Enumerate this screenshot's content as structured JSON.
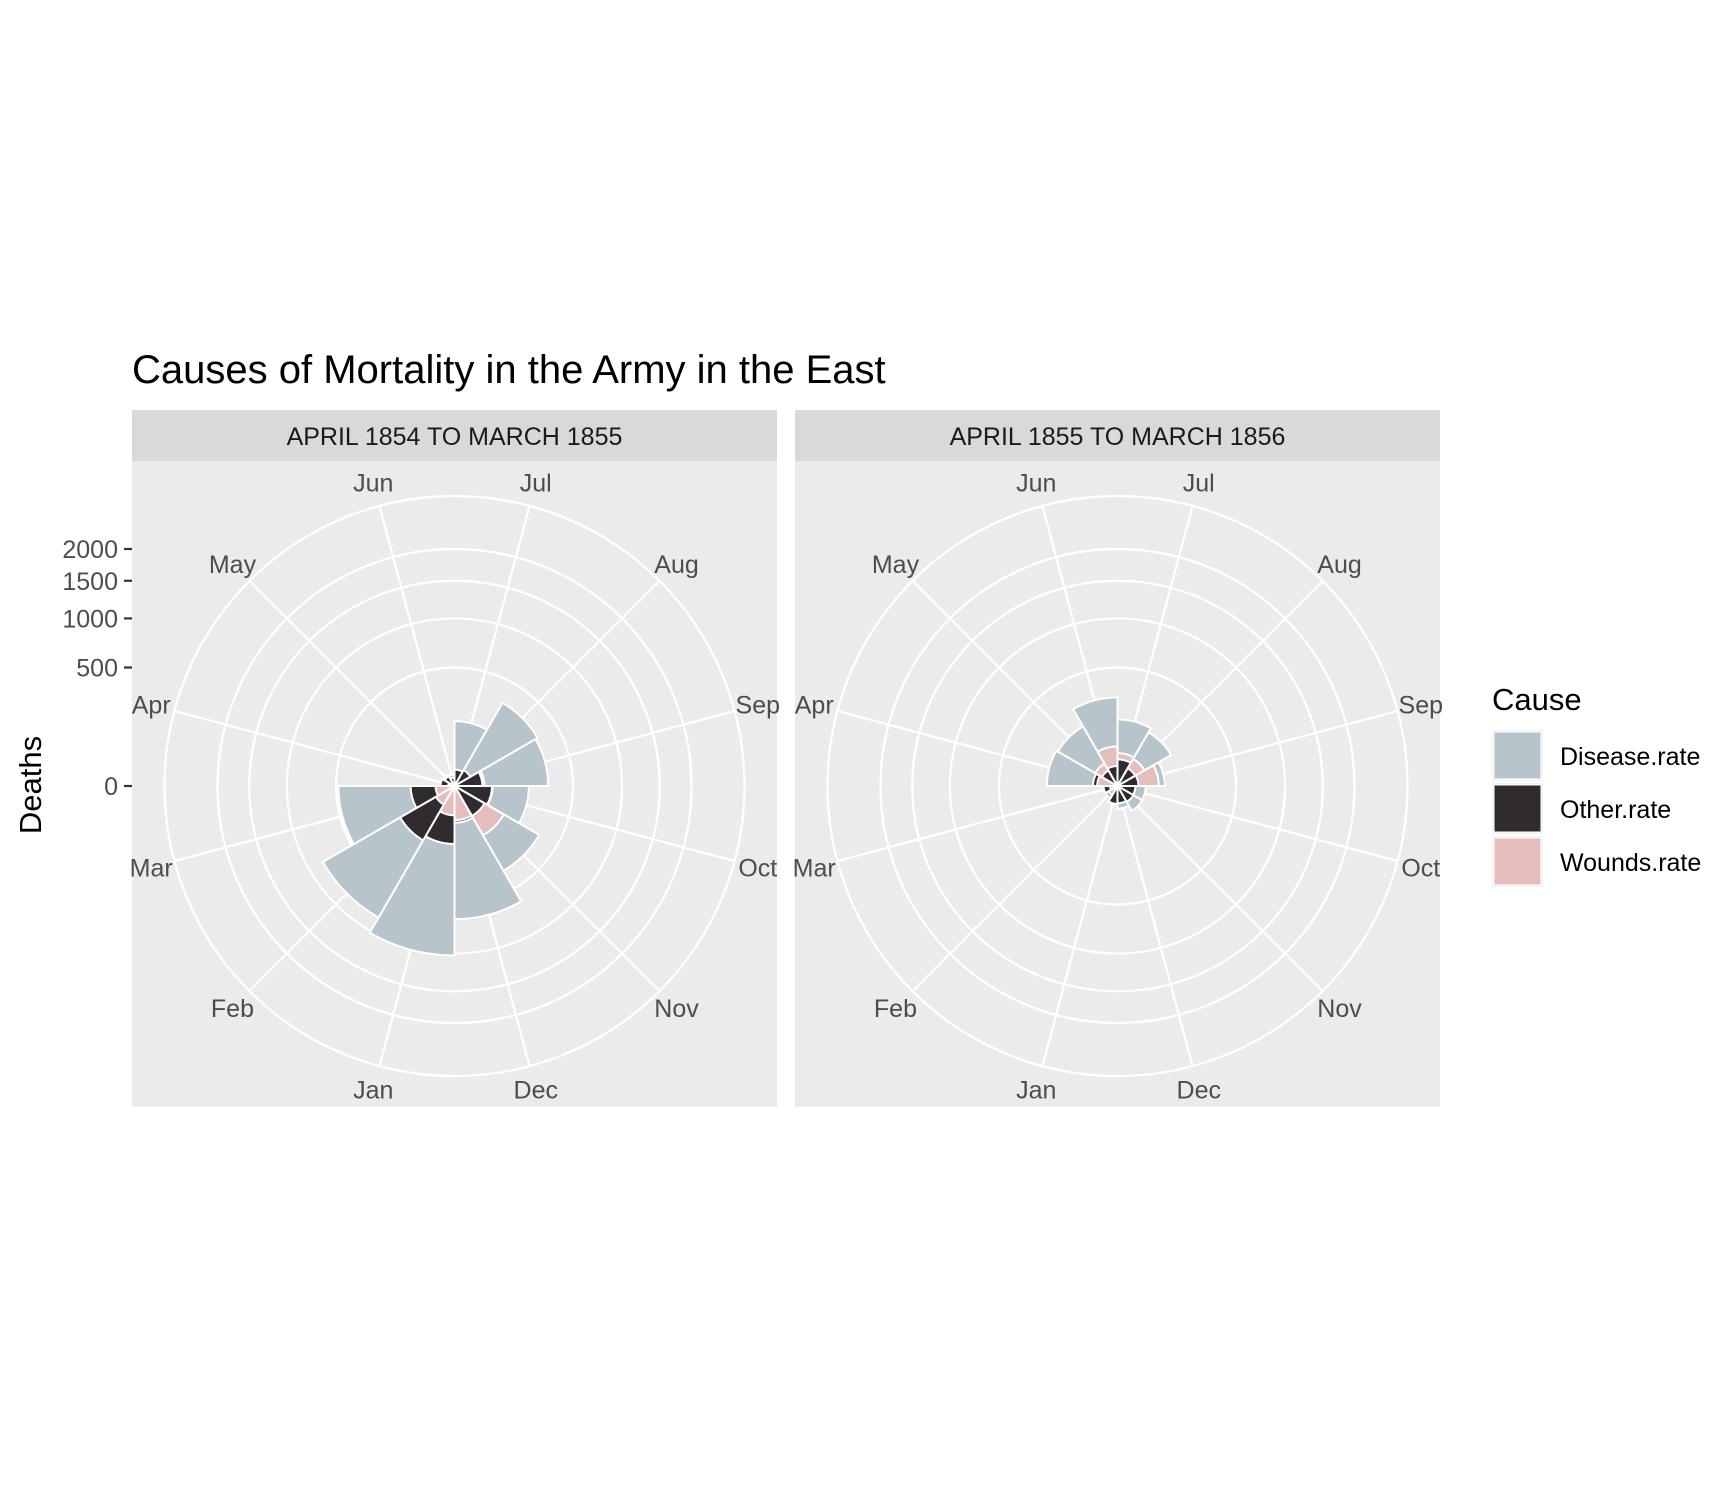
{
  "chart_data": {
    "type": "polar-area",
    "title": "Causes of Mortality in the Army in the East",
    "ylabel": "Deaths",
    "y_scale": "sqrt",
    "y_ticks": [
      0,
      500,
      1000,
      1500,
      2000
    ],
    "y_tick_labels": [
      "0",
      "500",
      "1000",
      "1500",
      "2000"
    ],
    "months": [
      "Apr",
      "May",
      "Jun",
      "Jul",
      "Aug",
      "Sep",
      "Oct",
      "Nov",
      "Dec",
      "Jan",
      "Feb",
      "Mar"
    ],
    "grid": true,
    "legend": {
      "title": "Cause",
      "position": "right",
      "entries": [
        "Disease.rate",
        "Other.rate",
        "Wounds.rate"
      ]
    },
    "colors": {
      "Disease.rate": "#b8c4cb",
      "Other.rate": "#302b2e",
      "Wounds.rate": "#e4bebd",
      "panel": "#ebebeb",
      "strip": "#d9d9d9",
      "grid": "#ffffff"
    },
    "panels": [
      {
        "label": "APRIL 1854 TO MARCH 1855",
        "series": [
          {
            "name": "Disease.rate",
            "values": [
              1.4,
              6.2,
              4.7,
              150,
              328,
              312.2,
              197,
              340.6,
              631.5,
              1022.8,
              822.8,
              480.3
            ]
          },
          {
            "name": "Other.rate",
            "values": [
              7,
              4.6,
              2.5,
              9.6,
              11.9,
              27.7,
              50.1,
              42.8,
              48,
              120,
              140.1,
              68.6
            ]
          },
          {
            "name": "Wounds.rate",
            "values": [
              0,
              0,
              0,
              0,
              0.4,
              32.1,
              51.7,
              115.8,
              41.7,
              30.7,
              16.3,
              12.8
            ]
          }
        ]
      },
      {
        "label": "APRIL 1855 TO MARCH 1856",
        "series": [
          {
            "name": "Disease.rate",
            "values": [
              177.5,
              168.6,
              279.6,
              157.8,
              136.5,
              79.9,
              28.5,
              29.2,
              18.3,
              12.3,
              4.2,
              2
            ]
          },
          {
            "name": "Other.rate",
            "values": [
              21.5,
              11.6,
              14.3,
              25.3,
              14.9,
              15.7,
              11.4,
              12,
              10.6,
              11.4,
              6.4,
              6.9
            ]
          },
          {
            "name": "Wounds.rate",
            "values": [
              14.7,
              23.7,
              56,
              38.5,
              34.7,
              60.9,
              0.5,
              0.4,
              0,
              0.1,
              0,
              0.2
            ]
          }
        ]
      }
    ]
  }
}
